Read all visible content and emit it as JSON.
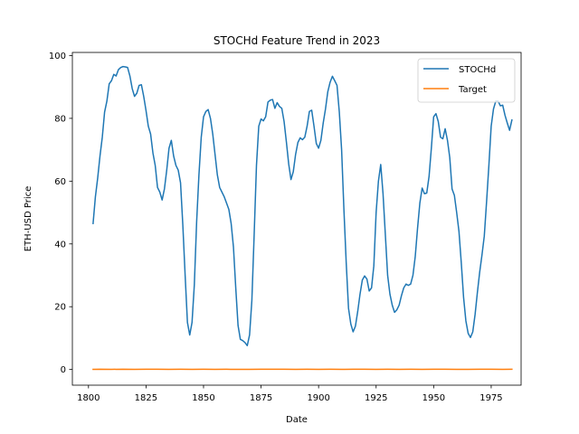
{
  "chart_data": {
    "type": "line",
    "title": "STOCHd Feature Trend in 2023",
    "xlabel": "Date",
    "ylabel": "ETH-USD Price",
    "xlim": [
      1793,
      1988
    ],
    "ylim": [
      -5,
      101
    ],
    "xticks": [
      1800,
      1825,
      1850,
      1875,
      1900,
      1925,
      1950,
      1975
    ],
    "yticks": [
      0,
      20,
      40,
      60,
      80,
      100
    ],
    "grid": false,
    "legend_position": "top-right",
    "series": [
      {
        "name": "STOCHd",
        "color": "#1f77b4",
        "points": [
          [
            1802,
            46.5
          ],
          [
            1803,
            55
          ],
          [
            1804,
            61
          ],
          [
            1805,
            68
          ],
          [
            1806,
            74
          ],
          [
            1807,
            82
          ],
          [
            1808,
            85.5
          ],
          [
            1809,
            91
          ],
          [
            1810,
            92
          ],
          [
            1811,
            94
          ],
          [
            1812,
            93.5
          ],
          [
            1813,
            95.5
          ],
          [
            1814,
            96.2
          ],
          [
            1815,
            96.5
          ],
          [
            1816,
            96.4
          ],
          [
            1817,
            96.2
          ],
          [
            1818,
            93.5
          ],
          [
            1819,
            89.5
          ],
          [
            1820,
            87
          ],
          [
            1821,
            88
          ],
          [
            1822,
            90.5
          ],
          [
            1823,
            90.7
          ],
          [
            1824,
            87
          ],
          [
            1825,
            82.5
          ],
          [
            1826,
            77.5
          ],
          [
            1827,
            75
          ],
          [
            1828,
            69
          ],
          [
            1829,
            65
          ],
          [
            1830,
            58
          ],
          [
            1831,
            56.5
          ],
          [
            1832,
            54
          ],
          [
            1833,
            57.5
          ],
          [
            1834,
            63.5
          ],
          [
            1835,
            70.5
          ],
          [
            1836,
            73
          ],
          [
            1837,
            68
          ],
          [
            1838,
            65
          ],
          [
            1839,
            63.5
          ],
          [
            1840,
            59.5
          ],
          [
            1841,
            46
          ],
          [
            1842,
            30
          ],
          [
            1843,
            15
          ],
          [
            1844,
            11
          ],
          [
            1845,
            15
          ],
          [
            1846,
            27
          ],
          [
            1847,
            47
          ],
          [
            1848,
            62
          ],
          [
            1849,
            74
          ],
          [
            1850,
            80.5
          ],
          [
            1851,
            82.2
          ],
          [
            1852,
            82.8
          ],
          [
            1853,
            80
          ],
          [
            1854,
            75
          ],
          [
            1855,
            68.5
          ],
          [
            1856,
            62
          ],
          [
            1857,
            58
          ],
          [
            1858,
            56.5
          ],
          [
            1859,
            55
          ],
          [
            1860,
            53
          ],
          [
            1861,
            51
          ],
          [
            1862,
            46.5
          ],
          [
            1863,
            39
          ],
          [
            1864,
            26
          ],
          [
            1865,
            14
          ],
          [
            1866,
            9.6
          ],
          [
            1867,
            9.2
          ],
          [
            1868,
            8.6
          ],
          [
            1869,
            7.6
          ],
          [
            1870,
            11
          ],
          [
            1871,
            22
          ],
          [
            1872,
            43
          ],
          [
            1873,
            65
          ],
          [
            1874,
            77.5
          ],
          [
            1875,
            79.8
          ],
          [
            1876,
            79.2
          ],
          [
            1877,
            80.5
          ],
          [
            1878,
            85.2
          ],
          [
            1879,
            85.8
          ],
          [
            1880,
            86
          ],
          [
            1881,
            83.2
          ],
          [
            1882,
            85
          ],
          [
            1883,
            83.8
          ],
          [
            1884,
            83.2
          ],
          [
            1885,
            79
          ],
          [
            1886,
            72.5
          ],
          [
            1887,
            65.5
          ],
          [
            1888,
            60.5
          ],
          [
            1889,
            63
          ],
          [
            1890,
            68.5
          ],
          [
            1891,
            72.3
          ],
          [
            1892,
            73.8
          ],
          [
            1893,
            73.2
          ],
          [
            1894,
            74
          ],
          [
            1895,
            77.5
          ],
          [
            1896,
            82.2
          ],
          [
            1897,
            82.6
          ],
          [
            1898,
            77.5
          ],
          [
            1899,
            72
          ],
          [
            1900,
            70.5
          ],
          [
            1901,
            73
          ],
          [
            1902,
            78.5
          ],
          [
            1903,
            83
          ],
          [
            1904,
            88.5
          ],
          [
            1905,
            91.5
          ],
          [
            1906,
            93.4
          ],
          [
            1907,
            92
          ],
          [
            1908,
            90.5
          ],
          [
            1909,
            82
          ],
          [
            1910,
            70
          ],
          [
            1911,
            51
          ],
          [
            1912,
            34
          ],
          [
            1913,
            19.5
          ],
          [
            1914,
            14.5
          ],
          [
            1915,
            12
          ],
          [
            1916,
            13.8
          ],
          [
            1917,
            18.5
          ],
          [
            1918,
            24
          ],
          [
            1919,
            28.5
          ],
          [
            1920,
            29.8
          ],
          [
            1921,
            28.8
          ],
          [
            1922,
            25
          ],
          [
            1923,
            26
          ],
          [
            1924,
            33
          ],
          [
            1925,
            50
          ],
          [
            1926,
            60
          ],
          [
            1927,
            65.3
          ],
          [
            1928,
            56
          ],
          [
            1929,
            43
          ],
          [
            1930,
            30
          ],
          [
            1931,
            24
          ],
          [
            1932,
            20.5
          ],
          [
            1933,
            18.2
          ],
          [
            1934,
            19
          ],
          [
            1935,
            20.5
          ],
          [
            1936,
            23.5
          ],
          [
            1937,
            26
          ],
          [
            1938,
            27.2
          ],
          [
            1939,
            26.8
          ],
          [
            1940,
            27.2
          ],
          [
            1941,
            30
          ],
          [
            1942,
            36
          ],
          [
            1943,
            45
          ],
          [
            1944,
            53
          ],
          [
            1945,
            57.8
          ],
          [
            1946,
            56
          ],
          [
            1947,
            56.2
          ],
          [
            1948,
            61.5
          ],
          [
            1949,
            70.5
          ],
          [
            1950,
            80.5
          ],
          [
            1951,
            81.5
          ],
          [
            1952,
            79
          ],
          [
            1953,
            74
          ],
          [
            1954,
            73.5
          ],
          [
            1955,
            76.7
          ],
          [
            1956,
            73
          ],
          [
            1957,
            67.5
          ],
          [
            1958,
            57.5
          ],
          [
            1959,
            55.5
          ],
          [
            1960,
            50
          ],
          [
            1961,
            44
          ],
          [
            1962,
            34
          ],
          [
            1963,
            23
          ],
          [
            1964,
            15.5
          ],
          [
            1965,
            11.5
          ],
          [
            1966,
            10.2
          ],
          [
            1967,
            12
          ],
          [
            1968,
            17.5
          ],
          [
            1969,
            24.5
          ],
          [
            1970,
            31
          ],
          [
            1971,
            36.5
          ],
          [
            1972,
            42.5
          ],
          [
            1973,
            53.5
          ],
          [
            1974,
            65
          ],
          [
            1975,
            77.5
          ],
          [
            1976,
            83
          ],
          [
            1977,
            85.5
          ],
          [
            1978,
            85.5
          ],
          [
            1979,
            84
          ],
          [
            1980,
            84.2
          ],
          [
            1981,
            81
          ],
          [
            1982,
            78.5
          ],
          [
            1983,
            76.2
          ],
          [
            1984,
            79.5
          ]
        ]
      },
      {
        "name": "Target",
        "color": "#ff7f0e",
        "points": [
          [
            1802,
            0.05
          ],
          [
            1805,
            0.08
          ],
          [
            1810,
            0.04
          ],
          [
            1815,
            0.09
          ],
          [
            1820,
            0.05
          ],
          [
            1825,
            0.07
          ],
          [
            1830,
            0.06
          ],
          [
            1835,
            0.03
          ],
          [
            1840,
            0.07
          ],
          [
            1845,
            0.05
          ],
          [
            1850,
            0.08
          ],
          [
            1855,
            0.04
          ],
          [
            1860,
            0.06
          ],
          [
            1865,
            0.05
          ],
          [
            1870,
            0.03
          ],
          [
            1875,
            0.07
          ],
          [
            1880,
            0.06
          ],
          [
            1885,
            0.08
          ],
          [
            1890,
            0.05
          ],
          [
            1895,
            0.06
          ],
          [
            1900,
            0.04
          ],
          [
            1905,
            0.07
          ],
          [
            1910,
            0.05
          ],
          [
            1915,
            0.06
          ],
          [
            1920,
            0.08
          ],
          [
            1925,
            0.05
          ],
          [
            1930,
            0.06
          ],
          [
            1935,
            0.04
          ],
          [
            1940,
            0.07
          ],
          [
            1945,
            0.05
          ],
          [
            1950,
            0.06
          ],
          [
            1955,
            0.08
          ],
          [
            1960,
            0.05
          ],
          [
            1965,
            0.04
          ],
          [
            1970,
            0.07
          ],
          [
            1975,
            0.06
          ],
          [
            1980,
            0.05
          ],
          [
            1984,
            0.06
          ]
        ]
      }
    ]
  }
}
